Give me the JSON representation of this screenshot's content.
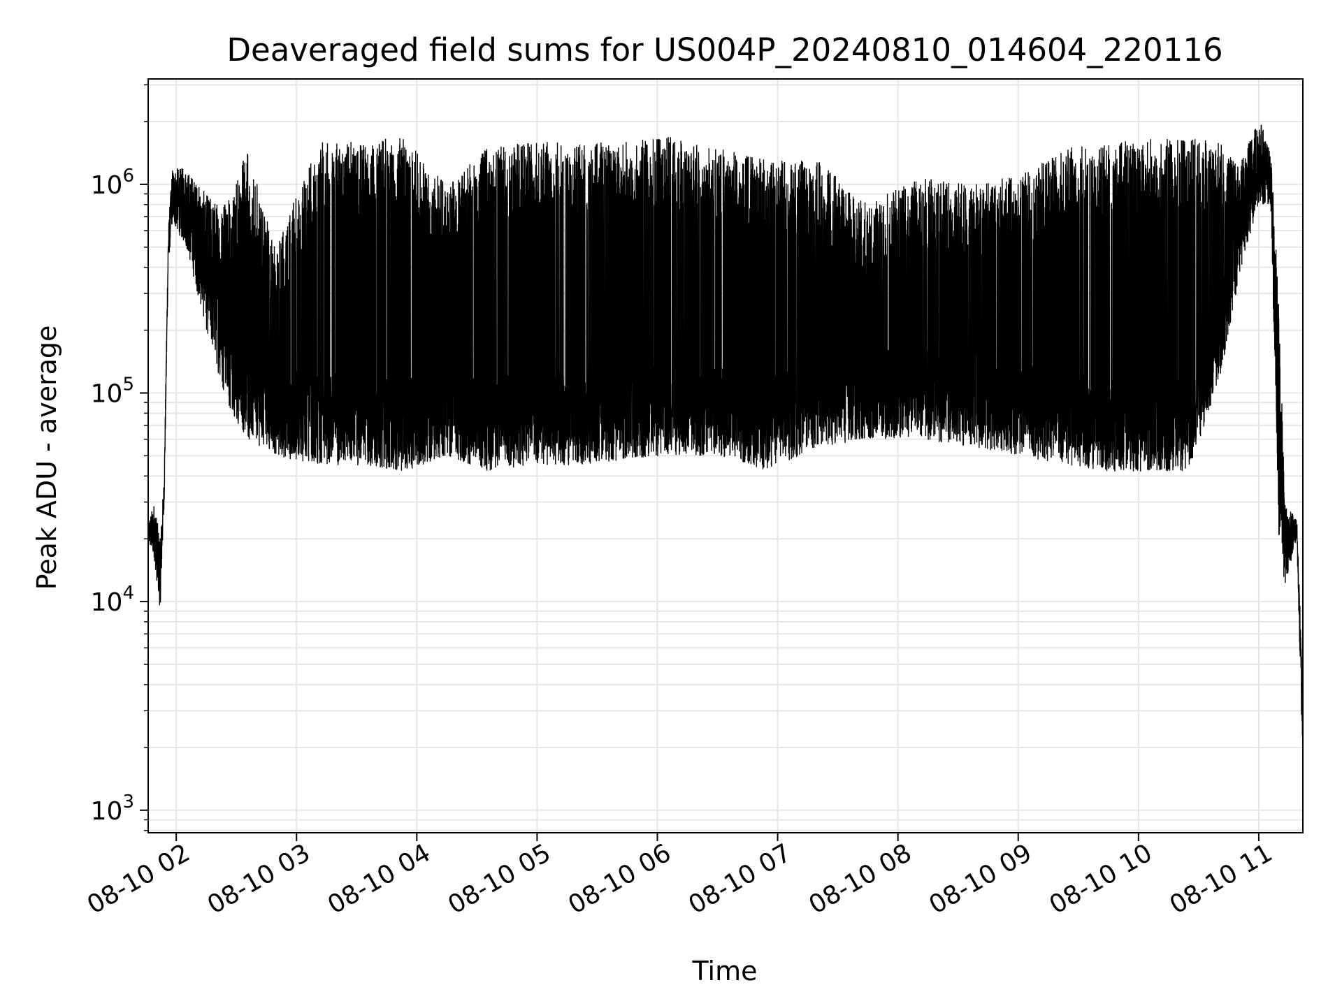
{
  "chart_data": {
    "type": "line",
    "title": "Deaveraged field sums for US004P_20240810_014604_220116",
    "xlabel": "Time",
    "ylabel": "Peak ADU - average",
    "xscale": "time",
    "yscale": "log",
    "xlim": [
      "2024-08-10 01:46",
      "2024-08-10 11:22"
    ],
    "ylim": [
      780,
      3200000
    ],
    "grid": true,
    "legend": "none",
    "x_ticks": [
      {
        "value": "2024-08-10 02:00",
        "label": "08-10 02"
      },
      {
        "value": "2024-08-10 03:00",
        "label": "08-10 03"
      },
      {
        "value": "2024-08-10 04:00",
        "label": "08-10 04"
      },
      {
        "value": "2024-08-10 05:00",
        "label": "08-10 05"
      },
      {
        "value": "2024-08-10 06:00",
        "label": "08-10 06"
      },
      {
        "value": "2024-08-10 07:00",
        "label": "08-10 07"
      },
      {
        "value": "2024-08-10 08:00",
        "label": "08-10 08"
      },
      {
        "value": "2024-08-10 09:00",
        "label": "08-10 09"
      },
      {
        "value": "2024-08-10 10:00",
        "label": "08-10 10"
      },
      {
        "value": "2024-08-10 11:00",
        "label": "08-10 11"
      }
    ],
    "y_ticks": [
      {
        "value": 1000,
        "base": "10",
        "exp": "3"
      },
      {
        "value": 10000,
        "base": "10",
        "exp": "4"
      },
      {
        "value": 100000,
        "base": "10",
        "exp": "5"
      },
      {
        "value": 1000000,
        "base": "10",
        "exp": "6"
      }
    ],
    "series": [
      {
        "color": "#000000",
        "envelope": [
          {
            "t": "2024-08-10 01:46",
            "low": 19000,
            "high": 24000
          },
          {
            "t": "2024-08-10 01:49",
            "low": 16000,
            "high": 30000
          },
          {
            "t": "2024-08-10 01:52",
            "low": 9000,
            "high": 20000
          },
          {
            "t": "2024-08-10 01:54",
            "low": 30000,
            "high": 40000
          },
          {
            "t": "2024-08-10 01:56",
            "low": 400000,
            "high": 600000
          },
          {
            "t": "2024-08-10 01:58",
            "low": 650000,
            "high": 1200000
          },
          {
            "t": "2024-08-10 02:05",
            "low": 500000,
            "high": 1200000
          },
          {
            "t": "2024-08-10 02:15",
            "low": 200000,
            "high": 900000
          },
          {
            "t": "2024-08-10 02:25",
            "low": 90000,
            "high": 800000
          },
          {
            "t": "2024-08-10 02:35",
            "low": 60000,
            "high": 1500000
          },
          {
            "t": "2024-08-10 02:50",
            "low": 50000,
            "high": 500000
          },
          {
            "t": "2024-08-10 03:10",
            "low": 45000,
            "high": 1600000
          },
          {
            "t": "2024-08-10 03:30",
            "low": 45000,
            "high": 1600000
          },
          {
            "t": "2024-08-10 03:55",
            "low": 42000,
            "high": 1700000
          },
          {
            "t": "2024-08-10 04:15",
            "low": 50000,
            "high": 1000000
          },
          {
            "t": "2024-08-10 04:35",
            "low": 42000,
            "high": 1500000
          },
          {
            "t": "2024-08-10 04:55",
            "low": 45000,
            "high": 1600000
          },
          {
            "t": "2024-08-10 05:20",
            "low": 45000,
            "high": 1600000
          },
          {
            "t": "2024-08-10 05:45",
            "low": 48000,
            "high": 1600000
          },
          {
            "t": "2024-08-10 06:05",
            "low": 50000,
            "high": 1700000
          },
          {
            "t": "2024-08-10 06:30",
            "low": 50000,
            "high": 1500000
          },
          {
            "t": "2024-08-10 06:55",
            "low": 42000,
            "high": 1300000
          },
          {
            "t": "2024-08-10 07:20",
            "low": 55000,
            "high": 1300000
          },
          {
            "t": "2024-08-10 07:45",
            "low": 60000,
            "high": 800000
          },
          {
            "t": "2024-08-10 08:10",
            "low": 60000,
            "high": 1100000
          },
          {
            "t": "2024-08-10 08:35",
            "low": 55000,
            "high": 1000000
          },
          {
            "t": "2024-08-10 09:00",
            "low": 50000,
            "high": 1100000
          },
          {
            "t": "2024-08-10 09:25",
            "low": 45000,
            "high": 1500000
          },
          {
            "t": "2024-08-10 09:45",
            "low": 42000,
            "high": 1600000
          },
          {
            "t": "2024-08-10 10:05",
            "low": 42000,
            "high": 1650000
          },
          {
            "t": "2024-08-10 10:25",
            "low": 42000,
            "high": 1650000
          },
          {
            "t": "2024-08-10 10:40",
            "low": 110000,
            "high": 1650000
          },
          {
            "t": "2024-08-10 10:50",
            "low": 350000,
            "high": 1200000
          },
          {
            "t": "2024-08-10 11:00",
            "low": 800000,
            "high": 2200000
          },
          {
            "t": "2024-08-10 11:06",
            "low": 800000,
            "high": 1400000
          },
          {
            "t": "2024-08-10 11:10",
            "low": 20000,
            "high": 300000
          },
          {
            "t": "2024-08-10 11:13",
            "low": 12000,
            "high": 30000
          },
          {
            "t": "2024-08-10 11:19",
            "low": 20000,
            "high": 25000
          },
          {
            "t": "2024-08-10 11:22",
            "low": 1500,
            "high": 4000
          }
        ]
      }
    ]
  }
}
